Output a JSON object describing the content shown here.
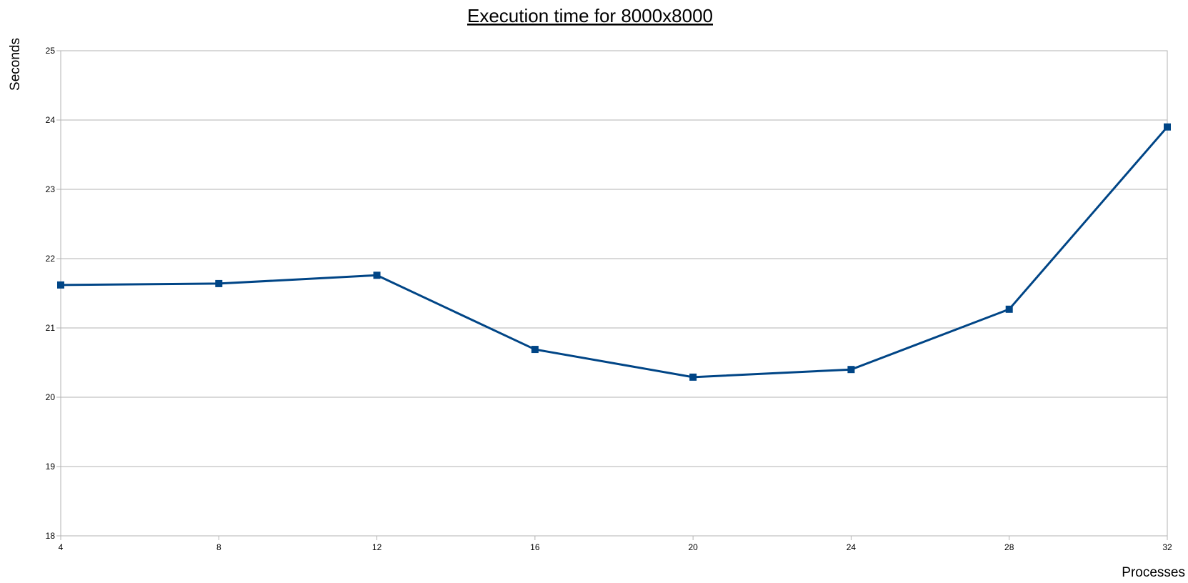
{
  "chart_data": {
    "type": "line",
    "title": "Execution time for 8000x8000",
    "xlabel": "Processes",
    "ylabel": "Seconds",
    "x": [
      4,
      8,
      12,
      16,
      20,
      24,
      28,
      32
    ],
    "xticks": [
      "4",
      "8",
      "12",
      "16",
      "20",
      "24",
      "28",
      "32"
    ],
    "yticks": [
      "18",
      "19",
      "20",
      "21",
      "22",
      "23",
      "24",
      "25"
    ],
    "xlim": [
      4,
      32
    ],
    "ylim": [
      18,
      25
    ],
    "grid": true,
    "legend": "none",
    "marker": "square",
    "series": [
      {
        "values": [
          21.62,
          21.64,
          21.76,
          20.69,
          20.29,
          20.4,
          21.27,
          23.9
        ],
        "color": "#004586"
      }
    ]
  }
}
